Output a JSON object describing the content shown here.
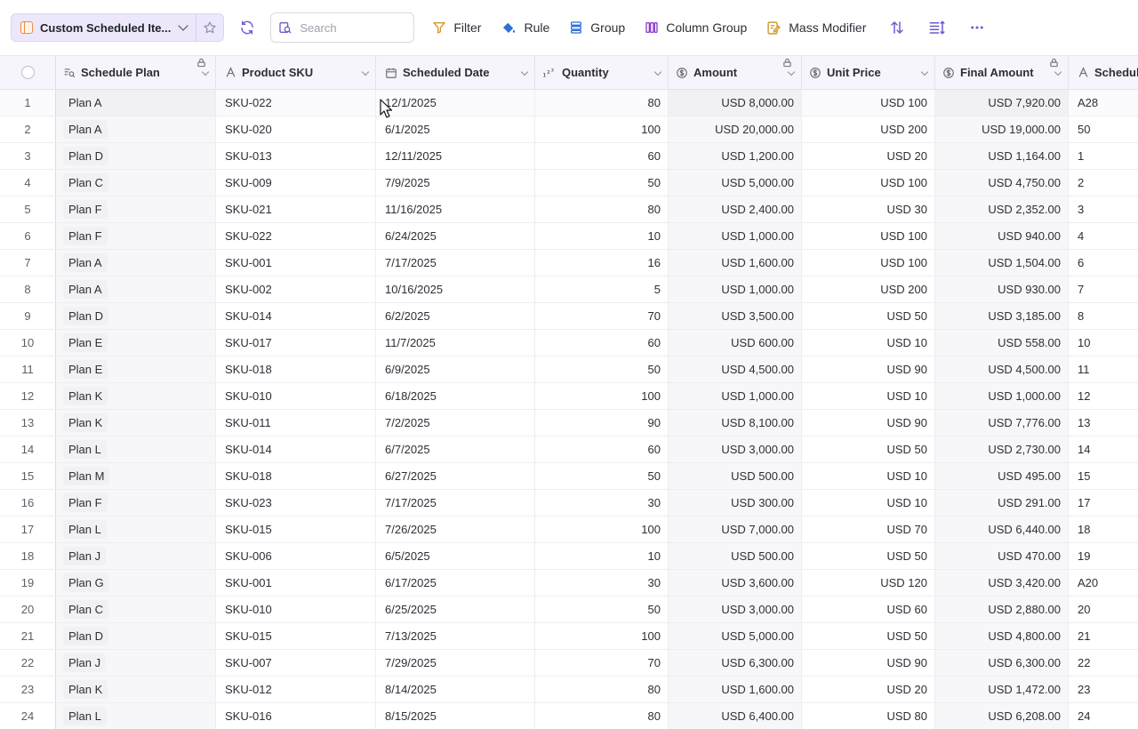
{
  "toolbar": {
    "view_name": "Custom Scheduled Ite...",
    "search_placeholder": "Search",
    "filter_label": "Filter",
    "rule_label": "Rule",
    "group_label": "Group",
    "column_group_label": "Column Group",
    "mass_modifier_label": "Mass Modifier"
  },
  "columns": {
    "schedule_plan": "Schedule Plan",
    "product_sku": "Product SKU",
    "scheduled_date": "Scheduled Date",
    "quantity": "Quantity",
    "amount": "Amount",
    "unit_price": "Unit Price",
    "final_amount": "Final Amount",
    "schedule": "Schedule"
  },
  "rows": [
    {
      "idx": "1",
      "plan": "Plan A",
      "sku": "SKU-022",
      "date": "12/1/2025",
      "qty": "80",
      "amount": "USD 8,000.00",
      "unit": "USD 100",
      "final": "USD 7,920.00",
      "sched": "A28"
    },
    {
      "idx": "2",
      "plan": "Plan A",
      "sku": "SKU-020",
      "date": "6/1/2025",
      "qty": "100",
      "amount": "USD 20,000.00",
      "unit": "USD 200",
      "final": "USD 19,000.00",
      "sched": "50"
    },
    {
      "idx": "3",
      "plan": "Plan D",
      "sku": "SKU-013",
      "date": "12/11/2025",
      "qty": "60",
      "amount": "USD 1,200.00",
      "unit": "USD 20",
      "final": "USD 1,164.00",
      "sched": "1"
    },
    {
      "idx": "4",
      "plan": "Plan C",
      "sku": "SKU-009",
      "date": "7/9/2025",
      "qty": "50",
      "amount": "USD 5,000.00",
      "unit": "USD 100",
      "final": "USD 4,750.00",
      "sched": "2"
    },
    {
      "idx": "5",
      "plan": "Plan F",
      "sku": "SKU-021",
      "date": "11/16/2025",
      "qty": "80",
      "amount": "USD 2,400.00",
      "unit": "USD 30",
      "final": "USD 2,352.00",
      "sched": "3"
    },
    {
      "idx": "6",
      "plan": "Plan F",
      "sku": "SKU-022",
      "date": "6/24/2025",
      "qty": "10",
      "amount": "USD 1,000.00",
      "unit": "USD 100",
      "final": "USD 940.00",
      "sched": "4"
    },
    {
      "idx": "7",
      "plan": "Plan A",
      "sku": "SKU-001",
      "date": "7/17/2025",
      "qty": "16",
      "amount": "USD 1,600.00",
      "unit": "USD 100",
      "final": "USD 1,504.00",
      "sched": "6"
    },
    {
      "idx": "8",
      "plan": "Plan A",
      "sku": "SKU-002",
      "date": "10/16/2025",
      "qty": "5",
      "amount": "USD 1,000.00",
      "unit": "USD 200",
      "final": "USD 930.00",
      "sched": "7"
    },
    {
      "idx": "9",
      "plan": "Plan D",
      "sku": "SKU-014",
      "date": "6/2/2025",
      "qty": "70",
      "amount": "USD 3,500.00",
      "unit": "USD 50",
      "final": "USD 3,185.00",
      "sched": "8"
    },
    {
      "idx": "10",
      "plan": "Plan E",
      "sku": "SKU-017",
      "date": "11/7/2025",
      "qty": "60",
      "amount": "USD 600.00",
      "unit": "USD 10",
      "final": "USD 558.00",
      "sched": "10"
    },
    {
      "idx": "11",
      "plan": "Plan E",
      "sku": "SKU-018",
      "date": "6/9/2025",
      "qty": "50",
      "amount": "USD 4,500.00",
      "unit": "USD 90",
      "final": "USD 4,500.00",
      "sched": "11"
    },
    {
      "idx": "12",
      "plan": "Plan K",
      "sku": "SKU-010",
      "date": "6/18/2025",
      "qty": "100",
      "amount": "USD 1,000.00",
      "unit": "USD 10",
      "final": "USD 1,000.00",
      "sched": "12"
    },
    {
      "idx": "13",
      "plan": "Plan K",
      "sku": "SKU-011",
      "date": "7/2/2025",
      "qty": "90",
      "amount": "USD 8,100.00",
      "unit": "USD 90",
      "final": "USD 7,776.00",
      "sched": "13"
    },
    {
      "idx": "14",
      "plan": "Plan L",
      "sku": "SKU-014",
      "date": "6/7/2025",
      "qty": "60",
      "amount": "USD 3,000.00",
      "unit": "USD 50",
      "final": "USD 2,730.00",
      "sched": "14"
    },
    {
      "idx": "15",
      "plan": "Plan M",
      "sku": "SKU-018",
      "date": "6/27/2025",
      "qty": "50",
      "amount": "USD 500.00",
      "unit": "USD 10",
      "final": "USD 495.00",
      "sched": "15"
    },
    {
      "idx": "16",
      "plan": "Plan F",
      "sku": "SKU-023",
      "date": "7/17/2025",
      "qty": "30",
      "amount": "USD 300.00",
      "unit": "USD 10",
      "final": "USD 291.00",
      "sched": "17"
    },
    {
      "idx": "17",
      "plan": "Plan L",
      "sku": "SKU-015",
      "date": "7/26/2025",
      "qty": "100",
      "amount": "USD 7,000.00",
      "unit": "USD 70",
      "final": "USD 6,440.00",
      "sched": "18"
    },
    {
      "idx": "18",
      "plan": "Plan J",
      "sku": "SKU-006",
      "date": "6/5/2025",
      "qty": "10",
      "amount": "USD 500.00",
      "unit": "USD 50",
      "final": "USD 470.00",
      "sched": "19"
    },
    {
      "idx": "19",
      "plan": "Plan G",
      "sku": "SKU-001",
      "date": "6/17/2025",
      "qty": "30",
      "amount": "USD 3,600.00",
      "unit": "USD 120",
      "final": "USD 3,420.00",
      "sched": "A20"
    },
    {
      "idx": "20",
      "plan": "Plan C",
      "sku": "SKU-010",
      "date": "6/25/2025",
      "qty": "50",
      "amount": "USD 3,000.00",
      "unit": "USD 60",
      "final": "USD 2,880.00",
      "sched": "20"
    },
    {
      "idx": "21",
      "plan": "Plan D",
      "sku": "SKU-015",
      "date": "7/13/2025",
      "qty": "100",
      "amount": "USD 5,000.00",
      "unit": "USD 50",
      "final": "USD 4,800.00",
      "sched": "21"
    },
    {
      "idx": "22",
      "plan": "Plan J",
      "sku": "SKU-007",
      "date": "7/29/2025",
      "qty": "70",
      "amount": "USD 6,300.00",
      "unit": "USD 90",
      "final": "USD 6,300.00",
      "sched": "22"
    },
    {
      "idx": "23",
      "plan": "Plan K",
      "sku": "SKU-012",
      "date": "8/14/2025",
      "qty": "80",
      "amount": "USD 1,600.00",
      "unit": "USD 20",
      "final": "USD 1,472.00",
      "sched": "23"
    },
    {
      "idx": "24",
      "plan": "Plan L",
      "sku": "SKU-016",
      "date": "8/15/2025",
      "qty": "80",
      "amount": "USD 6,400.00",
      "unit": "USD 80",
      "final": "USD 6,208.00",
      "sched": "24"
    }
  ],
  "icons": {
    "view": "sheet-icon",
    "favorite": "star-icon",
    "refresh": "refresh-icon",
    "search": "search-icon",
    "filter": "filter-icon",
    "rule": "paint-bucket-icon",
    "group": "stack-icon",
    "column_group": "columns-icon",
    "mass_modifier": "edit-icon",
    "sort": "sort-icon",
    "row_height": "row-height-icon",
    "more": "more-horizontal-icon",
    "lock": "lock-icon",
    "calendar": "calendar-icon"
  },
  "colors": {
    "accent": "#6b5bd2",
    "view_bg": "#ede7fb",
    "header_bg": "#f6f5fb",
    "view_icon": "#f08a3c"
  }
}
